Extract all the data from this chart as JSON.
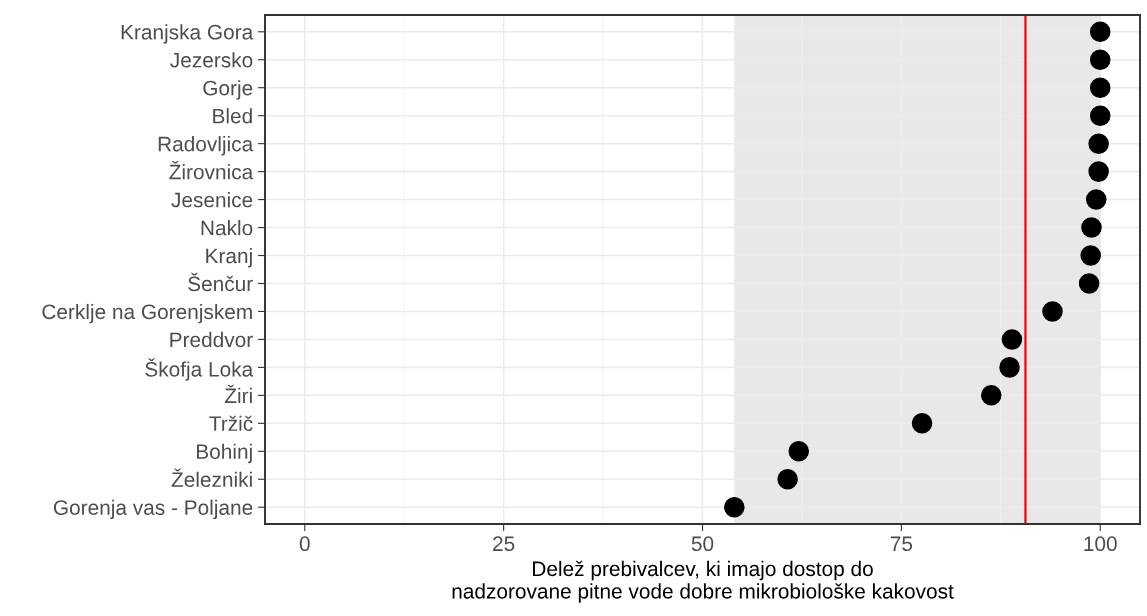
{
  "chart_data": {
    "type": "scatter",
    "orientation": "horizontal",
    "xlabel": "Delež prebivalcev, ki imajo dostop do\nnadzorovane pitne vode dobre mikrobiološke kakovost",
    "categories": [
      "Kranjska Gora",
      "Jezersko",
      "Gorje",
      "Bled",
      "Radovljica",
      "Žirovnica",
      "Jesenice",
      "Naklo",
      "Kranj",
      "Šenčur",
      "Cerklje na Gorenjskem",
      "Preddvor",
      "Škofja Loka",
      "Žiri",
      "Tržič",
      "Bohinj",
      "Železniki",
      "Gorenja vas - Poljane"
    ],
    "values": [
      100,
      100,
      100,
      100,
      99.8,
      99.8,
      99.5,
      98.9,
      98.8,
      98.6,
      94.0,
      88.9,
      88.6,
      86.3,
      77.6,
      62.1,
      60.7,
      54.0
    ],
    "color": "#000000",
    "marker": "circle",
    "xlim": [
      -5,
      105
    ],
    "xticks": [
      0,
      25,
      50,
      75,
      100
    ],
    "ref_lines": [
      {
        "axis": "x",
        "value": 90.6,
        "color": "#ff0000"
      }
    ],
    "bands": [
      {
        "axis": "x",
        "from": 54.0,
        "to": 100,
        "color": "#e8e8e8"
      }
    ],
    "grid": true
  }
}
